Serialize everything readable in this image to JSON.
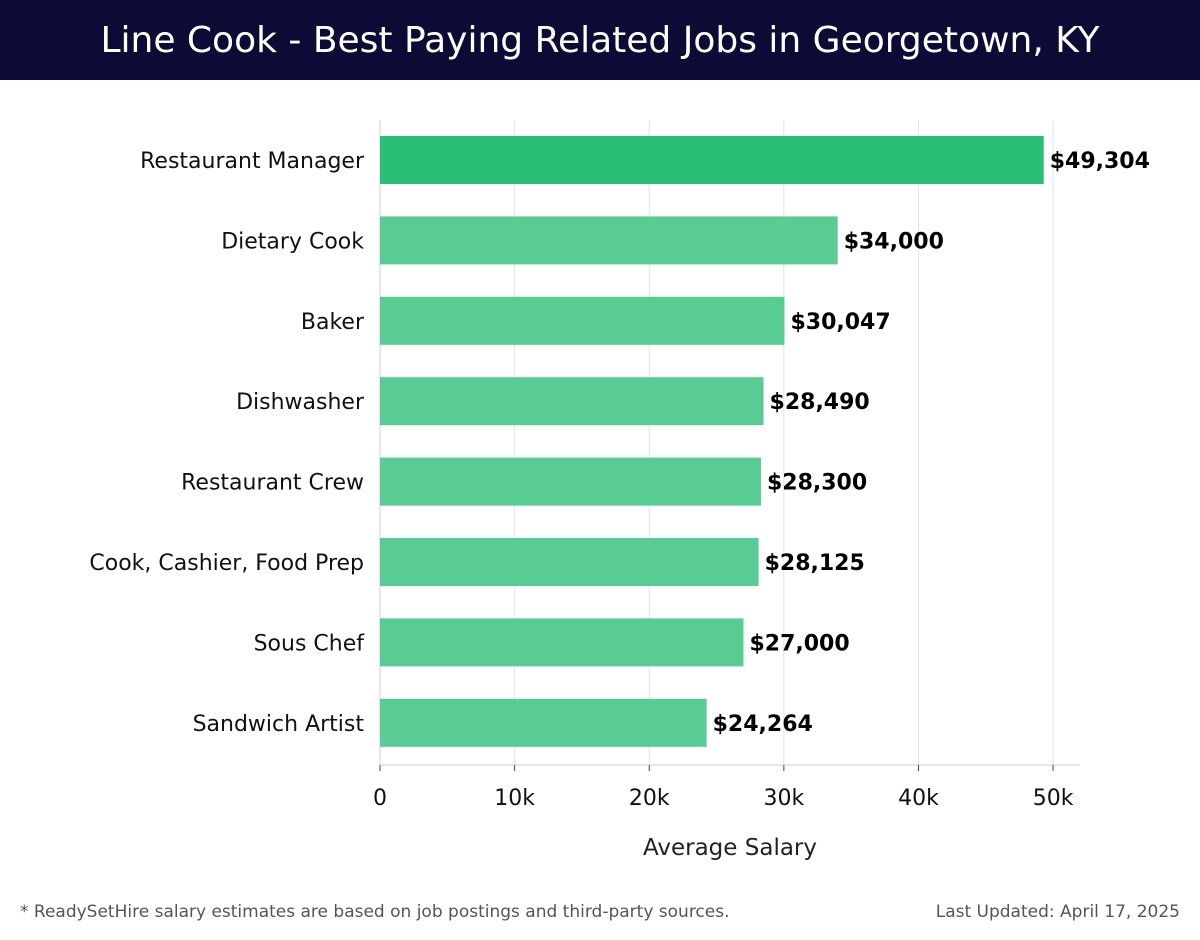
{
  "header": {
    "title": "Line Cook - Best Paying Related Jobs in Georgetown, KY"
  },
  "chart_data": {
    "type": "bar",
    "orientation": "horizontal",
    "categories": [
      "Restaurant Manager",
      "Dietary Cook",
      "Baker",
      "Dishwasher",
      "Restaurant Crew",
      "Cook, Cashier, Food Prep",
      "Sous Chef",
      "Sandwich Artist"
    ],
    "values": [
      49304,
      34000,
      30047,
      28490,
      28300,
      28125,
      27000,
      24264
    ],
    "value_labels": [
      "$49,304",
      "$34,000",
      "$30,047",
      "$28,490",
      "$28,300",
      "$28,125",
      "$27,000",
      "$24,264"
    ],
    "xlabel": "Average Salary",
    "ylabel": "",
    "xlim": [
      0,
      52000
    ],
    "xticks": [
      0,
      10000,
      20000,
      30000,
      40000,
      50000
    ],
    "xtick_labels": [
      "0",
      "10k",
      "20k",
      "30k",
      "40k",
      "50k"
    ],
    "grid": true,
    "colors": {
      "highlight": "#2bbf73",
      "bar": "#50c98d",
      "grid": "#e3e3e3",
      "axis": "#cfcfcf"
    }
  },
  "footer": {
    "note": "* ReadySetHire salary estimates are based on job postings and third-party sources.",
    "updated_label": "Last Updated:",
    "updated_date": "April 17, 2025"
  }
}
